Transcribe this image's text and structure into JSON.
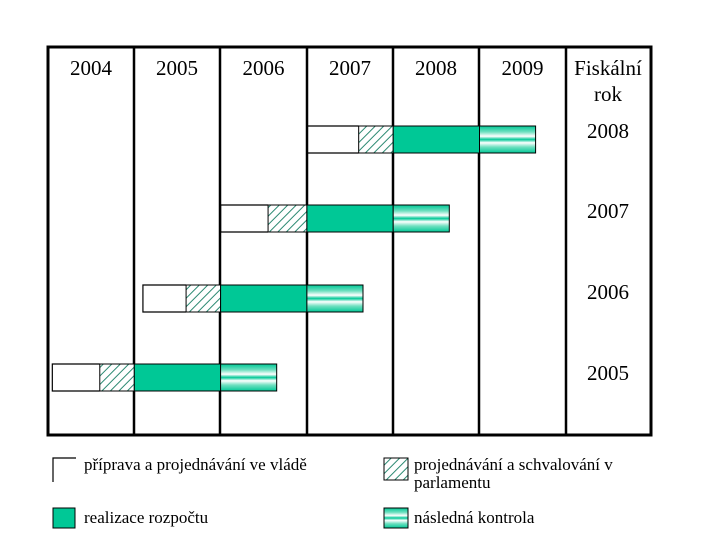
{
  "chart_data": {
    "type": "gantt",
    "x_unit": "year",
    "year_headers": [
      "2004",
      "2005",
      "2006",
      "2007",
      "2008",
      "2009"
    ],
    "fiscal_header_lines": [
      "Fiskální",
      "rok"
    ],
    "fiscal_years": [
      {
        "label": "2008",
        "phases": [
          {
            "phase": "priprava",
            "start": 2007.0,
            "end": 2007.6
          },
          {
            "phase": "projednavani",
            "start": 2007.6,
            "end": 2008.0
          },
          {
            "phase": "realizace",
            "start": 2008.0,
            "end": 2009.0
          },
          {
            "phase": "kontrola",
            "start": 2009.0,
            "end": 2009.65
          }
        ]
      },
      {
        "label": "2007",
        "phases": [
          {
            "phase": "priprava",
            "start": 2006.0,
            "end": 2006.55
          },
          {
            "phase": "projednavani",
            "start": 2006.55,
            "end": 2007.0
          },
          {
            "phase": "realizace",
            "start": 2007.0,
            "end": 2008.0
          },
          {
            "phase": "kontrola",
            "start": 2008.0,
            "end": 2008.65
          }
        ]
      },
      {
        "label": "2006",
        "phases": [
          {
            "phase": "priprava",
            "start": 2005.1,
            "end": 2005.6
          },
          {
            "phase": "projednavani",
            "start": 2005.6,
            "end": 2006.0
          },
          {
            "phase": "realizace",
            "start": 2006.0,
            "end": 2007.0
          },
          {
            "phase": "kontrola",
            "start": 2007.0,
            "end": 2007.65
          }
        ]
      },
      {
        "label": "2005",
        "phases": [
          {
            "phase": "priprava",
            "start": 2004.05,
            "end": 2004.6
          },
          {
            "phase": "projednavani",
            "start": 2004.6,
            "end": 2005.0
          },
          {
            "phase": "realizace",
            "start": 2005.0,
            "end": 2006.0
          },
          {
            "phase": "kontrola",
            "start": 2006.0,
            "end": 2006.65
          }
        ]
      }
    ],
    "legend": [
      {
        "key": "priprava",
        "label": "příprava a projednávání ve vládě"
      },
      {
        "key": "projednavani",
        "label": "projednávání a schvalování v parlamentu"
      },
      {
        "key": "realizace",
        "label": "realizace rozpočtu"
      },
      {
        "key": "kontrola",
        "label": "následná kontrola"
      }
    ],
    "colors": {
      "frame": "#000000",
      "realizace": "#00c896",
      "hatch_line": "#2e8b74",
      "kontrola_band": "#00c896",
      "kontrola_light": "#ffffff",
      "priprava_fill": "#ffffff"
    }
  }
}
